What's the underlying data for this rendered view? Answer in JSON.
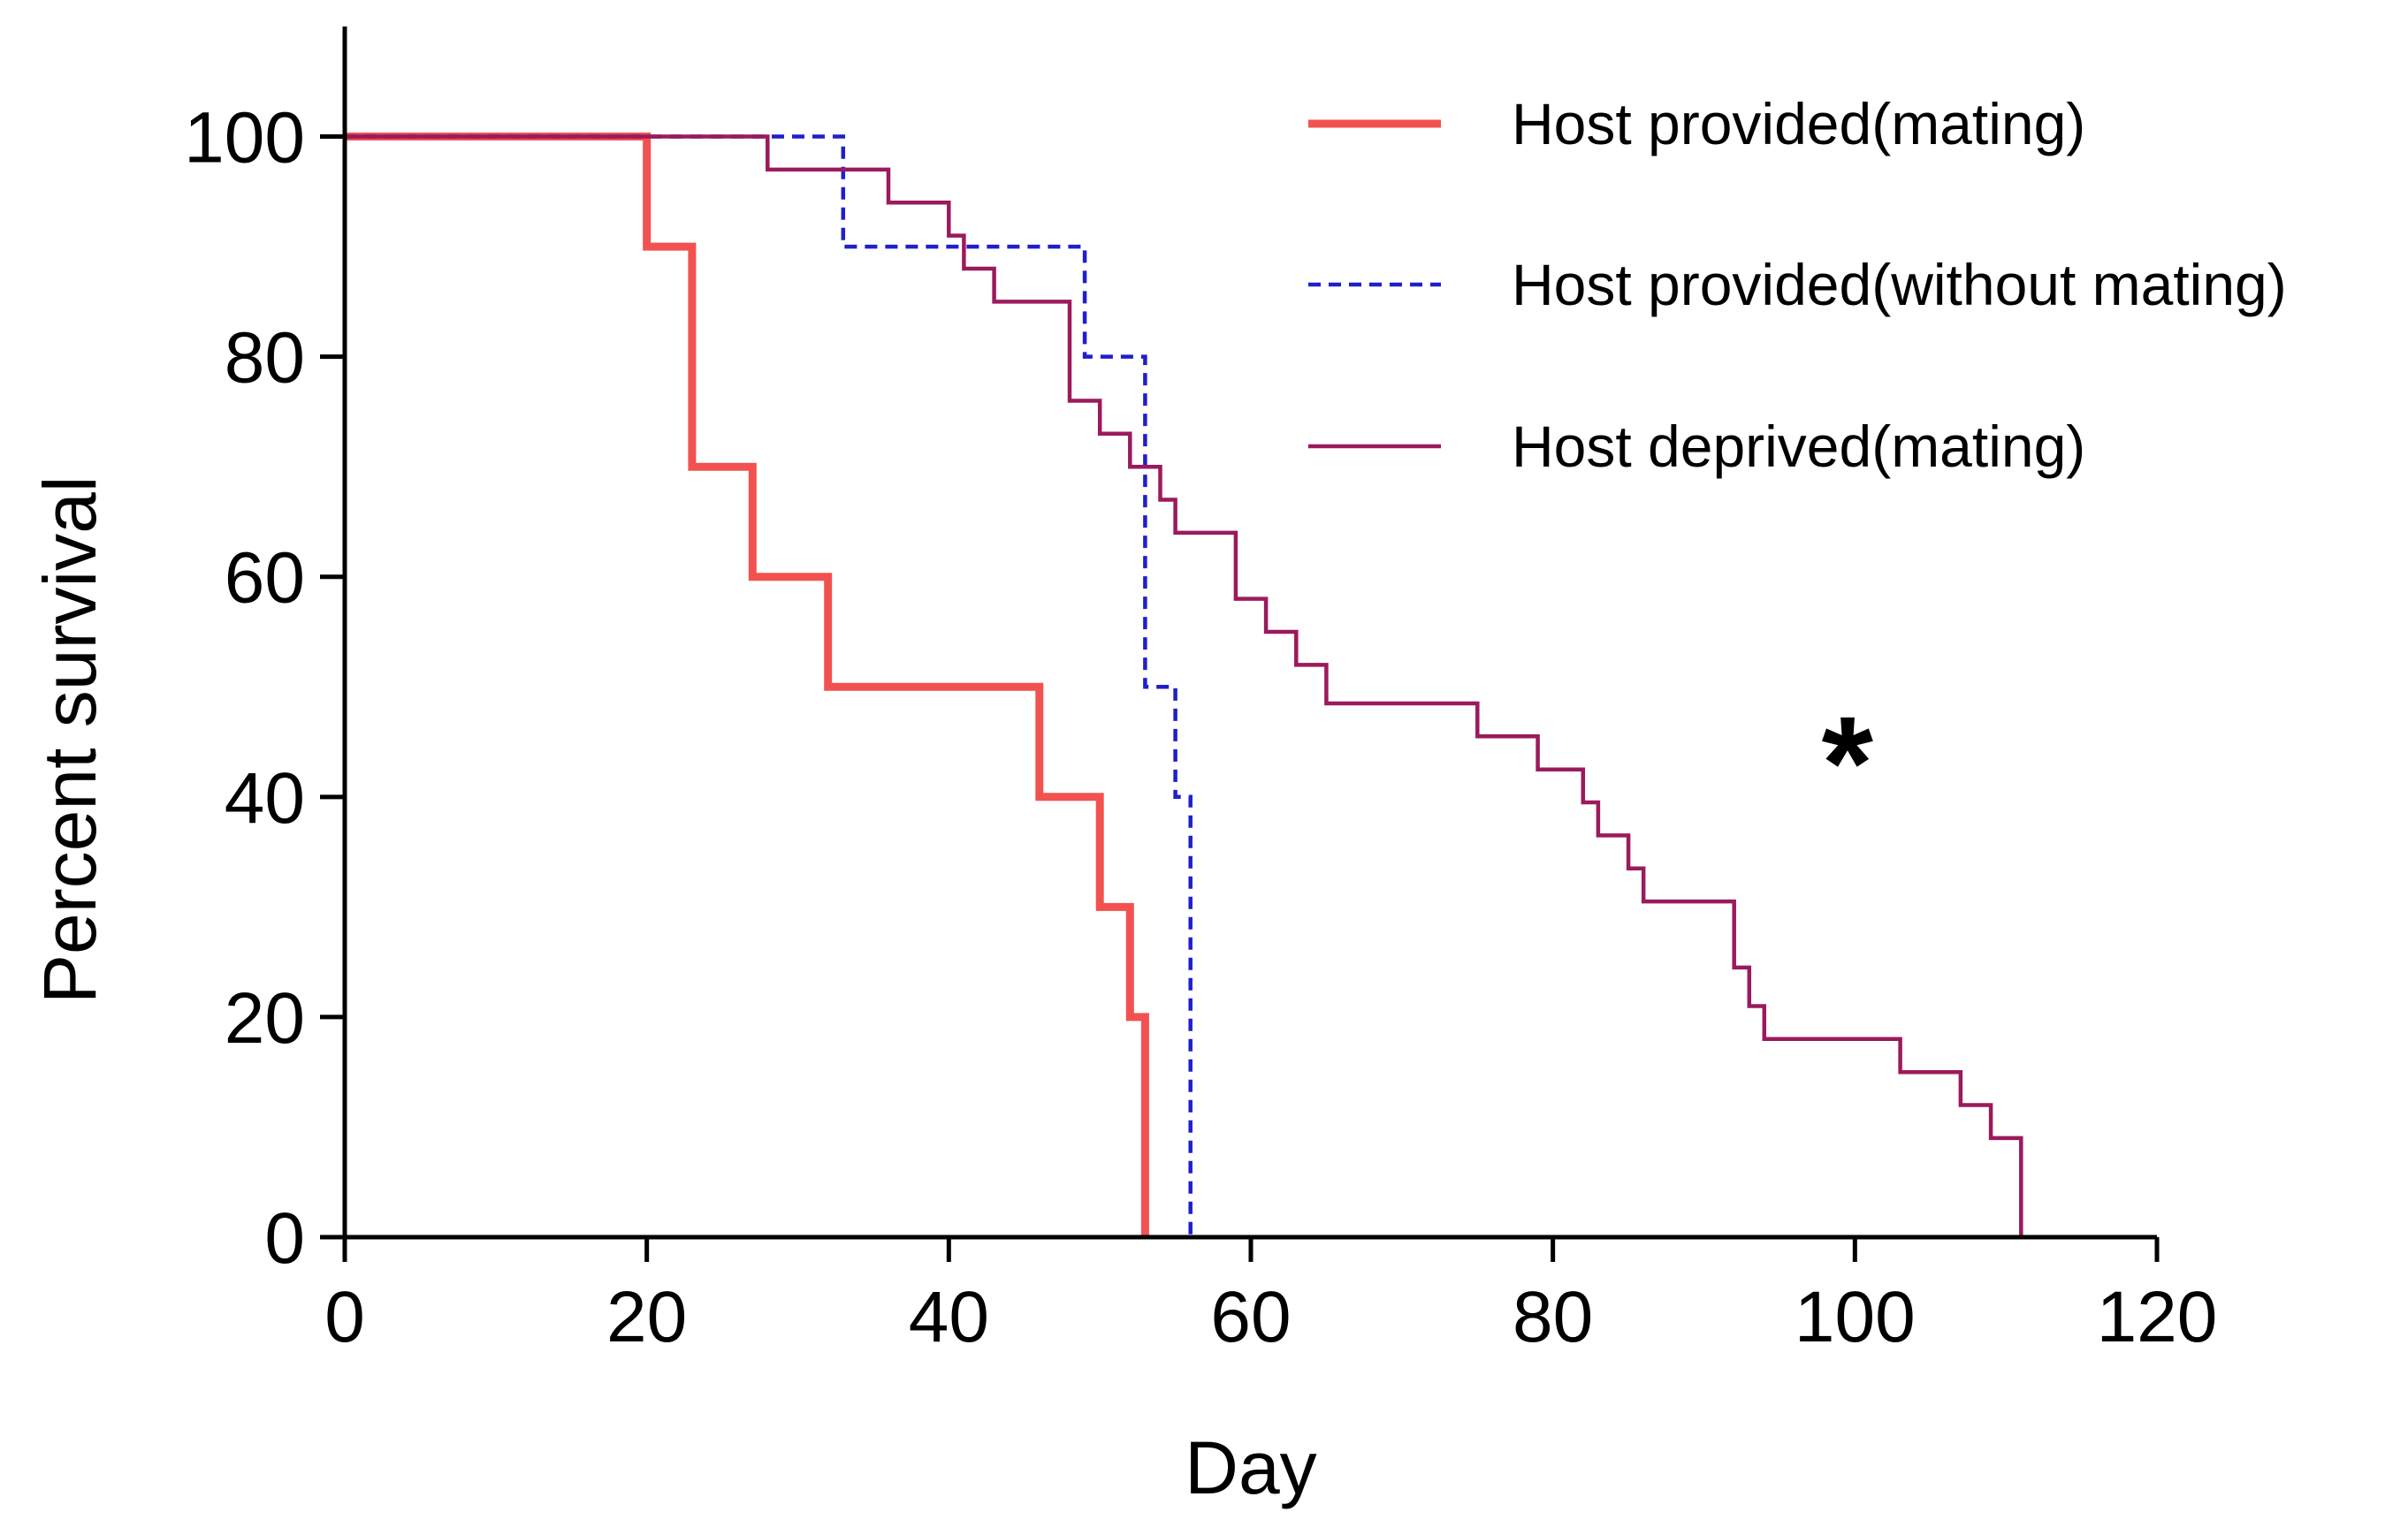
{
  "chart_data": {
    "type": "line",
    "subtype": "kaplan-meier-step",
    "title": "",
    "xlabel": "Day",
    "ylabel": "Percent survival",
    "xlim": [
      0,
      120
    ],
    "ylim": [
      0,
      110
    ],
    "xticks": [
      0,
      20,
      40,
      60,
      80,
      100,
      120
    ],
    "xtick_labels": [
      "0",
      "20",
      "40",
      "60",
      "80",
      "100",
      "120"
    ],
    "yticks": [
      0,
      20,
      40,
      60,
      80,
      100
    ],
    "ytick_labels": [
      "0",
      "20",
      "40",
      "60",
      "80",
      "100"
    ],
    "grid": false,
    "legend_position": "top-right",
    "annotation": {
      "text": "*",
      "x": 99.5,
      "y": 46
    },
    "series": [
      {
        "name": "Host provided(mating)",
        "color": "#f2524f",
        "style": "solid-thick",
        "points": [
          [
            0,
            100
          ],
          [
            20,
            100
          ],
          [
            20,
            90
          ],
          [
            23,
            90
          ],
          [
            23,
            70
          ],
          [
            27,
            70
          ],
          [
            27,
            60
          ],
          [
            32,
            60
          ],
          [
            32,
            50
          ],
          [
            46,
            50
          ],
          [
            46,
            40
          ],
          [
            50,
            40
          ],
          [
            50,
            30
          ],
          [
            52,
            30
          ],
          [
            52,
            20
          ],
          [
            53,
            20
          ],
          [
            53,
            0
          ]
        ]
      },
      {
        "name": "Host provided(without mating)",
        "color": "#1f1fcc",
        "style": "dashed",
        "points": [
          [
            0,
            100
          ],
          [
            33,
            100
          ],
          [
            33,
            90
          ],
          [
            49,
            90
          ],
          [
            49,
            80
          ],
          [
            53,
            80
          ],
          [
            53,
            50
          ],
          [
            55,
            50
          ],
          [
            55,
            40
          ],
          [
            56,
            40
          ],
          [
            56,
            0
          ]
        ]
      },
      {
        "name": "Host deprived(mating)",
        "color": "#9b1a5c",
        "style": "solid",
        "points": [
          [
            0,
            100
          ],
          [
            28,
            100
          ],
          [
            28,
            97
          ],
          [
            36,
            97
          ],
          [
            36,
            94
          ],
          [
            40,
            94
          ],
          [
            40,
            91
          ],
          [
            41,
            91
          ],
          [
            41,
            88
          ],
          [
            43,
            88
          ],
          [
            43,
            85
          ],
          [
            48,
            85
          ],
          [
            48,
            76
          ],
          [
            50,
            76
          ],
          [
            50,
            73
          ],
          [
            52,
            73
          ],
          [
            52,
            70
          ],
          [
            54,
            70
          ],
          [
            54,
            67
          ],
          [
            55,
            67
          ],
          [
            55,
            64
          ],
          [
            59,
            64
          ],
          [
            59,
            58
          ],
          [
            61,
            58
          ],
          [
            61,
            55
          ],
          [
            63,
            55
          ],
          [
            63,
            52
          ],
          [
            65,
            52
          ],
          [
            65,
            48.5
          ],
          [
            75,
            48.5
          ],
          [
            75,
            45.5
          ],
          [
            79,
            45.5
          ],
          [
            79,
            42.5
          ],
          [
            82,
            42.5
          ],
          [
            82,
            39.5
          ],
          [
            83,
            39.5
          ],
          [
            83,
            36.5
          ],
          [
            85,
            36.5
          ],
          [
            85,
            33.5
          ],
          [
            86,
            33.5
          ],
          [
            86,
            30.5
          ],
          [
            92,
            30.5
          ],
          [
            92,
            24.5
          ],
          [
            93,
            24.5
          ],
          [
            93,
            21
          ],
          [
            94,
            21
          ],
          [
            94,
            18
          ],
          [
            103,
            18
          ],
          [
            103,
            15
          ],
          [
            107,
            15
          ],
          [
            107,
            12
          ],
          [
            109,
            12
          ],
          [
            109,
            9
          ],
          [
            111,
            9
          ],
          [
            111,
            0
          ]
        ]
      }
    ]
  }
}
